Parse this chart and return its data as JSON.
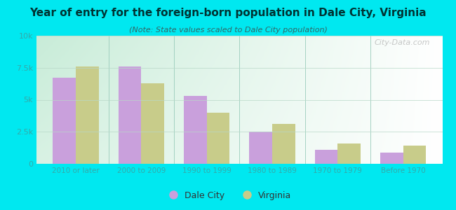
{
  "title": "Year of entry for the foreign-born population in Dale City, Virginia",
  "subtitle": "(Note: State values scaled to Dale City population)",
  "categories": [
    "2010 or later",
    "2000 to 2009",
    "1990 to 1999",
    "1980 to 1989",
    "1970 to 1979",
    "Before 1970"
  ],
  "dale_city_values": [
    6700,
    7600,
    5300,
    2500,
    1100,
    900
  ],
  "virginia_values": [
    7600,
    6300,
    4000,
    3100,
    1600,
    1400
  ],
  "dale_city_color": "#c9a0dc",
  "virginia_color": "#c8cc8a",
  "background_outer": "#00e8f0",
  "background_inner_tl": "#c8ecd8",
  "background_inner_tr": "#e8f8f0",
  "background_inner_br": "#ffffff",
  "ylim": [
    0,
    10000
  ],
  "yticks": [
    0,
    2500,
    5000,
    7500,
    10000
  ],
  "ytick_labels": [
    "0",
    "2.5k",
    "5k",
    "7.5k",
    "10k"
  ],
  "bar_width": 0.35,
  "legend_labels": [
    "Dale City",
    "Virginia"
  ],
  "watermark": "City-Data.com",
  "title_color": "#003333",
  "subtitle_color": "#336666",
  "tick_color": "#33aaaa"
}
